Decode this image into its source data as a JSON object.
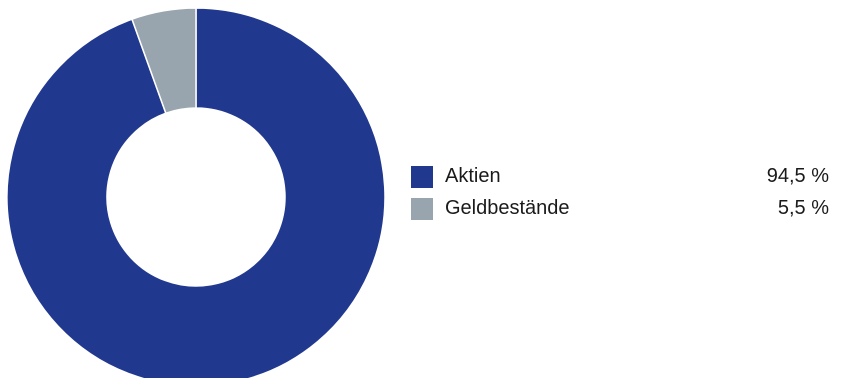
{
  "chart_data": {
    "type": "pie",
    "donut": true,
    "slices": [
      {
        "label": "Aktien",
        "value": 94.5,
        "value_text": "94,5 %",
        "color": "#21388f"
      },
      {
        "label": "Geldbestände",
        "value": 5.5,
        "value_text": "5,5 %",
        "color": "#98a5ae"
      }
    ],
    "legend_position": "right"
  }
}
